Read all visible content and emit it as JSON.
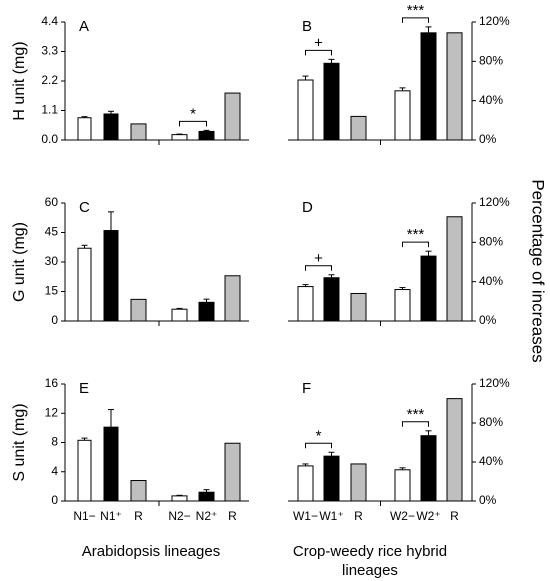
{
  "figure": {
    "right_axis_label": "Percentage of increases",
    "left_bottom_label": "Arabidopsis lineages",
    "right_bottom_label_line1": "Crop-weedy rice hybrid",
    "right_bottom_label_line2": "lineages",
    "x_ticks_left": [
      "N1−",
      "N1⁺",
      "R",
      "N2−",
      "N2⁺",
      "R"
    ],
    "x_ticks_right": [
      "W1−",
      "W1⁺",
      "R",
      "W2−",
      "W2⁺",
      "R"
    ]
  },
  "colors": {
    "minus": "#ffffff",
    "plus": "#000000",
    "R": "#bfbfbf",
    "stroke": "#000000"
  },
  "chart_data": [
    {
      "panel": "A",
      "type": "bar",
      "ylabel": "H unit (mg)",
      "ylim": [
        0,
        4.4
      ],
      "yticks": [
        "0.0",
        "1.1",
        "2.2",
        "3.3",
        "4.4"
      ],
      "categories": [
        "N1−",
        "N1⁺",
        "R",
        "N2−",
        "N2⁺",
        "R"
      ],
      "values": [
        0.83,
        0.97,
        0.6,
        0.2,
        0.32,
        1.75
      ],
      "errors": [
        0.04,
        0.1,
        0,
        0.02,
        0.04,
        0
      ],
      "significance": [
        {
          "between": [
            3,
            4
          ],
          "label": "*"
        }
      ]
    },
    {
      "panel": "B",
      "type": "bar",
      "ylim": [
        0,
        1.2
      ],
      "yticks": [
        "0%",
        "40%",
        "80%",
        "120%"
      ],
      "categories": [
        "W1−",
        "W1⁺",
        "R",
        "W2−",
        "W2⁺",
        "R"
      ],
      "values": [
        0.61,
        0.78,
        0.24,
        0.5,
        1.09,
        1.09
      ],
      "errors": [
        0.04,
        0.04,
        0,
        0.03,
        0.06,
        0
      ],
      "significance": [
        {
          "between": [
            0,
            1
          ],
          "label": "+"
        },
        {
          "between": [
            3,
            4
          ],
          "label": "***"
        }
      ]
    },
    {
      "panel": "C",
      "type": "bar",
      "ylabel": "G unit (mg)",
      "ylim": [
        0,
        60
      ],
      "yticks": [
        "0",
        "15",
        "30",
        "45",
        "60"
      ],
      "categories": [
        "N1−",
        "N1⁺",
        "R",
        "N2−",
        "N2⁺",
        "R"
      ],
      "values": [
        37,
        46,
        11,
        6,
        9.5,
        23
      ],
      "errors": [
        1.5,
        9.5,
        0,
        0.4,
        1.6,
        0
      ],
      "significance": []
    },
    {
      "panel": "D",
      "type": "bar",
      "ylim": [
        0,
        1.2
      ],
      "yticks": [
        "0%",
        "40%",
        "80%",
        "120%"
      ],
      "categories": [
        "W1−",
        "W1⁺",
        "R",
        "W2−",
        "W2⁺",
        "R"
      ],
      "values": [
        0.35,
        0.44,
        0.28,
        0.32,
        0.66,
        1.06
      ],
      "errors": [
        0.02,
        0.03,
        0,
        0.02,
        0.05,
        0
      ],
      "significance": [
        {
          "between": [
            0,
            1
          ],
          "label": "+"
        },
        {
          "between": [
            3,
            4
          ],
          "label": "***"
        }
      ]
    },
    {
      "panel": "E",
      "type": "bar",
      "ylabel": "S unit (mg)",
      "ylim": [
        0,
        16
      ],
      "yticks": [
        "0",
        "4",
        "8",
        "12",
        "16"
      ],
      "categories": [
        "N1−",
        "N1⁺",
        "R",
        "N2−",
        "N2⁺",
        "R"
      ],
      "values": [
        8.3,
        10.1,
        2.8,
        0.7,
        1.2,
        7.9
      ],
      "errors": [
        0.3,
        2.4,
        0,
        0.08,
        0.35,
        0
      ],
      "significance": []
    },
    {
      "panel": "F",
      "type": "bar",
      "ylim": [
        0,
        1.2
      ],
      "yticks": [
        "0%",
        "40%",
        "80%",
        "120%"
      ],
      "categories": [
        "W1−",
        "W1⁺",
        "R",
        "W2−",
        "W2⁺",
        "R"
      ],
      "values": [
        0.36,
        0.46,
        0.38,
        0.32,
        0.67,
        1.05
      ],
      "errors": [
        0.02,
        0.04,
        0,
        0.02,
        0.05,
        0
      ],
      "significance": [
        {
          "between": [
            0,
            1
          ],
          "label": "*"
        },
        {
          "between": [
            3,
            4
          ],
          "label": "***"
        }
      ]
    }
  ]
}
